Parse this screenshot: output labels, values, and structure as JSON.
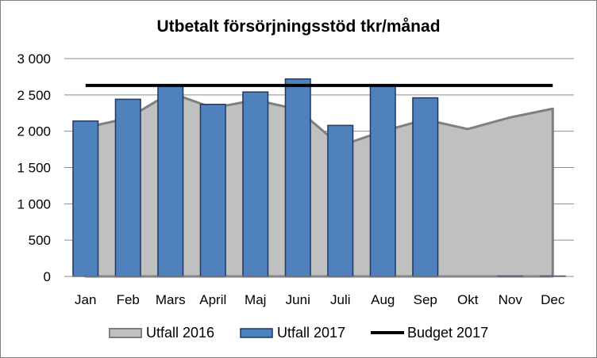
{
  "chart_data": {
    "type": "bar",
    "title": "Utbetalt försörjningsstöd tkr/månad",
    "xlabel": "",
    "ylabel": "",
    "categories": [
      "Jan",
      "Feb",
      "Mars",
      "April",
      "Maj",
      "Juni",
      "Juli",
      "Aug",
      "Sep",
      "Okt",
      "Nov",
      "Dec"
    ],
    "ylim": [
      0,
      3000
    ],
    "yticks": [
      0,
      500,
      1000,
      1500,
      2000,
      2500,
      3000
    ],
    "ytick_labels": [
      "0",
      "500",
      "1 000",
      "1 500",
      "2 000",
      "2 500",
      "3 000"
    ],
    "grid": true,
    "legend_position": "bottom",
    "series": [
      {
        "name": "Utfall 2016",
        "type": "area",
        "color": "#c0c0c0",
        "line_color": "#7f7f7f",
        "values": [
          2050,
          2180,
          2530,
          2320,
          2430,
          2300,
          1800,
          2000,
          2160,
          2030,
          2190,
          2310
        ]
      },
      {
        "name": "Utfall 2017",
        "type": "bar",
        "color": "#4f81bd",
        "border_color": "#1f3864",
        "values": [
          2140,
          2440,
          2620,
          2370,
          2540,
          2720,
          2080,
          2630,
          2460,
          0,
          5,
          5
        ]
      },
      {
        "name": "Budget 2017",
        "type": "line",
        "color": "#000000",
        "values": [
          2630,
          2630,
          2630,
          2630,
          2630,
          2630,
          2630,
          2630,
          2630,
          2630,
          2630,
          2630
        ]
      }
    ]
  }
}
